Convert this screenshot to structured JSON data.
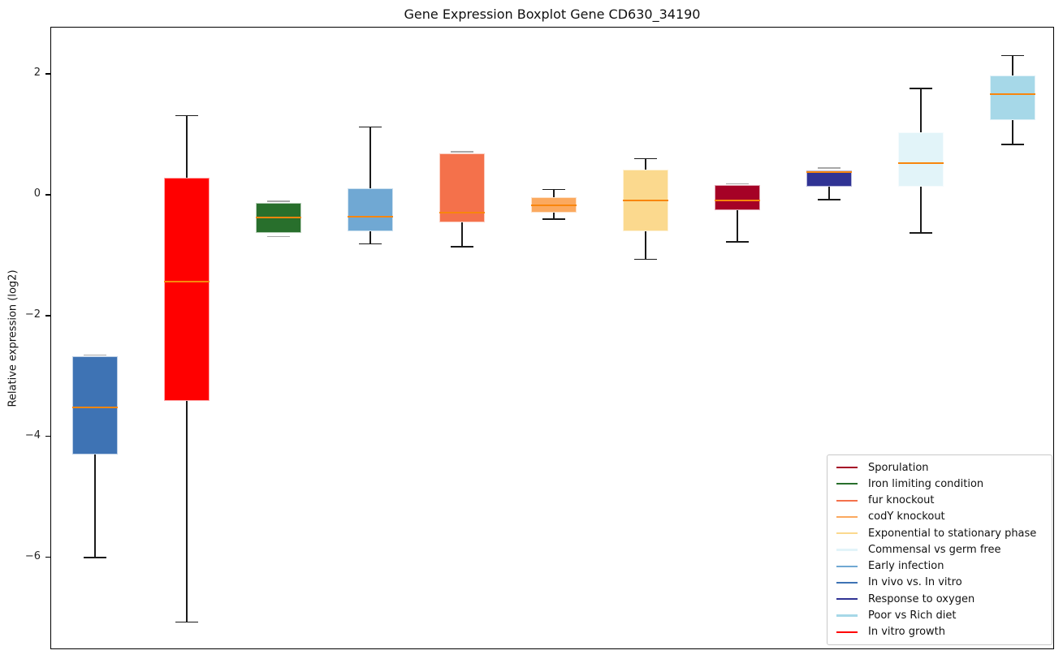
{
  "chart_data": {
    "type": "boxplot",
    "title": "Gene Expression Boxplot Gene CD630_34190",
    "xlabel": "",
    "ylabel": "Relative expression (log2)",
    "ylim": [
      -7.52,
      2.78
    ],
    "grid": false,
    "y_ticks": {
      "values": [
        2,
        0,
        -2,
        -4,
        -6
      ],
      "labels": [
        "2",
        "0",
        "−2",
        "−4",
        "−6"
      ]
    },
    "median_color": "#F8860D",
    "whisker_color": "#1a1a1a",
    "legend_position": "lower right",
    "series": [
      {
        "name": "In vivo vs. In vitro",
        "color": "#3E73B4",
        "whisker_low": -6.0,
        "q1": -4.3,
        "median": -3.52,
        "q3": -2.67,
        "whisker_high": -2.66
      },
      {
        "name": "In vitro growth",
        "color": "#FF0000",
        "whisker_low": -7.07,
        "q1": -3.41,
        "median": -1.43,
        "q3": 0.28,
        "whisker_high": 1.31
      },
      {
        "name": "Iron limiting condition",
        "color": "#286F2C",
        "whisker_low": -0.68,
        "q1": -0.63,
        "median": -0.38,
        "q3": -0.13,
        "whisker_high": -0.12
      },
      {
        "name": "Early infection",
        "color": "#70A8D3",
        "whisker_low": -0.81,
        "q1": -0.61,
        "median": -0.36,
        "q3": 0.11,
        "whisker_high": 1.12
      },
      {
        "name": "fur knockout",
        "color": "#F4714B",
        "whisker_low": -0.86,
        "q1": -0.45,
        "median": -0.29,
        "q3": 0.69,
        "whisker_high": 0.7
      },
      {
        "name": "codY knockout",
        "color": "#FBA95F",
        "whisker_low": -0.4,
        "q1": -0.3,
        "median": -0.17,
        "q3": -0.04,
        "whisker_high": 0.09
      },
      {
        "name": "Exponential to stationary phase",
        "color": "#FBD98E",
        "whisker_low": -1.07,
        "q1": -0.6,
        "median": -0.1,
        "q3": 0.41,
        "whisker_high": 0.6
      },
      {
        "name": "Sporulation",
        "color": "#A50226",
        "whisker_low": -0.78,
        "q1": -0.25,
        "median": -0.1,
        "q3": 0.16,
        "whisker_high": 0.17
      },
      {
        "name": "Response to oxygen",
        "color": "#303394",
        "whisker_low": -0.08,
        "q1": 0.13,
        "median": 0.37,
        "q3": 0.4,
        "whisker_high": 0.43
      },
      {
        "name": "Commensal vs germ free",
        "color": "#E2F4F9",
        "whisker_low": -0.63,
        "q1": 0.14,
        "median": 0.53,
        "q3": 1.04,
        "whisker_high": 1.76
      },
      {
        "name": "Poor vs Rich diet",
        "color": "#A6D8E8",
        "whisker_low": 0.83,
        "q1": 1.23,
        "median": 1.66,
        "q3": 1.98,
        "whisker_high": 2.3
      }
    ],
    "legend": {
      "entries": [
        {
          "label": "Sporulation",
          "color": "#A50226"
        },
        {
          "label": "Iron limiting condition",
          "color": "#286F2C"
        },
        {
          "label": "fur knockout",
          "color": "#F4714B"
        },
        {
          "label": "codY knockout",
          "color": "#FBA95F"
        },
        {
          "label": "Exponential to stationary phase",
          "color": "#FBD98E"
        },
        {
          "label": "Commensal vs germ free",
          "color": "#E2F4F9"
        },
        {
          "label": "Early infection",
          "color": "#70A8D3"
        },
        {
          "label": "In vivo vs. In vitro",
          "color": "#3E73B4"
        },
        {
          "label": "Response to oxygen",
          "color": "#303394"
        },
        {
          "label": "Poor vs Rich diet",
          "color": "#A6D8E8"
        },
        {
          "label": "In vitro growth",
          "color": "#FF0000"
        }
      ]
    }
  }
}
